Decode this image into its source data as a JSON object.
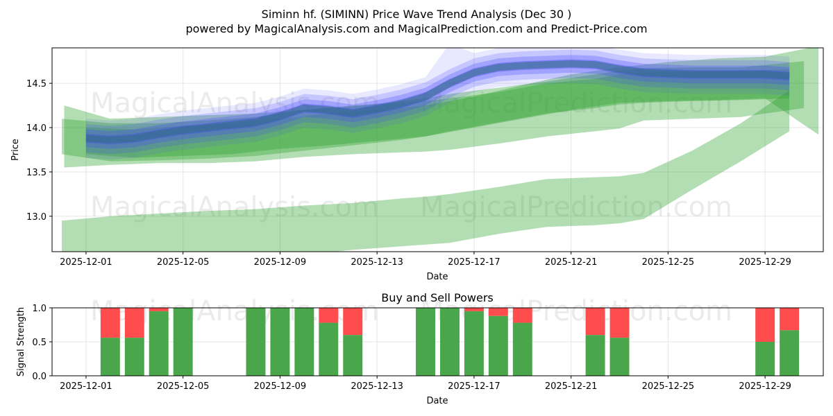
{
  "title": "Siminn hf. (SIMINN) Price Wave Trend Analysis (Dec 30 )",
  "subtitle": "powered by MagicalAnalysis.com and MagicalPrediction.com and Predict-Price.com",
  "watermarks": [
    "MagicalAnalysis.com",
    "MagicalPrediction.com"
  ],
  "colors": {
    "blue": "#4444ff",
    "green": "#2ca02c",
    "buy": "#4aa64a",
    "sell": "#ff4d4d",
    "teal": "#2f6f7a"
  },
  "chart_data": [
    {
      "type": "area",
      "name": "price-wave",
      "xlabel": "Date",
      "ylabel": "Price",
      "xlim": [
        -1.4,
        30.4
      ],
      "ylim": [
        12.6,
        14.9
      ],
      "x_origin_date": "2025-12-01",
      "x_ticks": [
        {
          "x": 0,
          "label": "2025-12-01"
        },
        {
          "x": 4,
          "label": "2025-12-05"
        },
        {
          "x": 8,
          "label": "2025-12-09"
        },
        {
          "x": 12,
          "label": "2025-12-13"
        },
        {
          "x": 16,
          "label": "2025-12-17"
        },
        {
          "x": 20,
          "label": "2025-12-21"
        },
        {
          "x": 24,
          "label": "2025-12-25"
        },
        {
          "x": 28,
          "label": "2025-12-29"
        }
      ],
      "y_ticks": [
        13.0,
        13.5,
        14.0,
        14.5
      ],
      "green_bands": [
        {
          "x": [
            -1,
            1,
            3,
            5,
            7,
            9,
            11,
            13,
            14,
            15,
            17,
            19,
            21,
            22,
            23,
            25,
            27,
            29
          ],
          "upper": [
            14.1,
            14.05,
            14.05,
            14.08,
            14.12,
            14.2,
            14.25,
            14.28,
            14.3,
            14.33,
            14.4,
            14.5,
            14.55,
            14.6,
            14.62,
            14.63,
            14.64,
            14.66
          ],
          "lower": [
            13.7,
            13.62,
            13.63,
            13.65,
            13.68,
            13.74,
            13.8,
            13.86,
            13.9,
            13.96,
            14.06,
            14.16,
            14.22,
            14.26,
            14.28,
            14.3,
            14.31,
            14.33
          ]
        },
        {
          "x": [
            -0.9,
            1,
            3,
            5,
            7,
            9,
            11,
            13,
            14,
            15,
            17,
            19,
            21,
            22,
            23,
            25,
            27,
            29.6
          ],
          "upper": [
            14.25,
            14.1,
            14.12,
            14.14,
            14.16,
            14.2,
            14.24,
            14.3,
            14.33,
            14.38,
            14.45,
            14.52,
            14.6,
            14.64,
            14.67,
            14.68,
            14.68,
            14.75
          ],
          "lower": [
            13.55,
            13.58,
            13.6,
            13.6,
            13.62,
            13.67,
            13.7,
            13.72,
            13.73,
            13.75,
            13.82,
            13.9,
            13.96,
            13.99,
            14.08,
            14.1,
            14.12,
            14.22
          ]
        },
        {
          "x": [
            -1,
            1,
            3,
            5,
            7,
            9,
            11,
            13,
            14,
            15,
            17,
            19,
            21,
            22,
            23,
            25,
            27,
            29
          ],
          "upper": [
            12.95,
            13.0,
            13.03,
            13.06,
            13.08,
            13.12,
            13.15,
            13.2,
            13.22,
            13.25,
            13.33,
            13.42,
            13.44,
            13.45,
            13.49,
            13.74,
            14.05,
            14.42
          ],
          "lower": [
            12.5,
            12.52,
            12.5,
            12.5,
            12.52,
            12.57,
            12.62,
            12.66,
            12.68,
            12.7,
            12.8,
            12.88,
            12.9,
            12.92,
            12.97,
            13.3,
            13.62,
            13.96
          ]
        },
        {
          "x": [
            0,
            2,
            4,
            6,
            8,
            10,
            12,
            14,
            16,
            18,
            20,
            22,
            24,
            26,
            28,
            30.2
          ],
          "upper": [
            14.0,
            13.98,
            14.02,
            14.05,
            14.1,
            14.16,
            14.2,
            14.25,
            14.35,
            14.48,
            14.6,
            14.68,
            14.74,
            14.78,
            14.8,
            14.92
          ],
          "lower": [
            13.7,
            13.66,
            13.68,
            13.7,
            13.76,
            13.8,
            13.85,
            13.9,
            14.0,
            14.1,
            14.2,
            14.28,
            14.3,
            14.31,
            14.33,
            13.92
          ]
        }
      ],
      "blue_center": {
        "x": [
          0,
          1,
          2,
          3,
          4,
          5,
          6,
          7,
          8,
          9,
          10,
          11,
          12,
          13,
          14,
          15,
          16,
          17,
          18,
          19,
          20,
          21,
          22,
          23,
          24,
          25,
          26,
          27,
          28,
          29
        ],
        "y": [
          13.88,
          13.86,
          13.88,
          13.93,
          13.97,
          14.0,
          14.03,
          14.06,
          14.13,
          14.22,
          14.2,
          14.16,
          14.21,
          14.27,
          14.35,
          14.5,
          14.62,
          14.68,
          14.7,
          14.71,
          14.72,
          14.71,
          14.66,
          14.62,
          14.61,
          14.6,
          14.6,
          14.6,
          14.6,
          14.58
        ]
      },
      "blue_halfwidths": [
        0.22,
        0.16,
        0.1,
        0.05
      ],
      "blue_peak": {
        "x": 15,
        "y": 14.95
      }
    },
    {
      "type": "bar",
      "name": "buy-sell-powers",
      "title": "Buy and Sell Powers",
      "xlabel": "Date",
      "ylabel": "Signal Strength",
      "xlim": [
        -1.4,
        30.4
      ],
      "ylim": [
        0,
        1.0
      ],
      "y_ticks": [
        0.0,
        0.5,
        1.0
      ],
      "y_tick_labels": [
        "0.0",
        "0.5",
        "1.0"
      ],
      "x_ticks": [
        {
          "x": 0,
          "label": "2025-12-01"
        },
        {
          "x": 4,
          "label": "2025-12-05"
        },
        {
          "x": 8,
          "label": "2025-12-09"
        },
        {
          "x": 12,
          "label": "2025-12-13"
        },
        {
          "x": 16,
          "label": "2025-12-17"
        },
        {
          "x": 20,
          "label": "2025-12-21"
        },
        {
          "x": 24,
          "label": "2025-12-25"
        },
        {
          "x": 28,
          "label": "2025-12-29"
        }
      ],
      "bars": [
        {
          "x": 1,
          "buy": 0.56
        },
        {
          "x": 2,
          "buy": 0.56
        },
        {
          "x": 3,
          "buy": 0.95
        },
        {
          "x": 4,
          "buy": 1.0
        },
        {
          "x": 7,
          "buy": 1.0
        },
        {
          "x": 8,
          "buy": 1.0
        },
        {
          "x": 9,
          "buy": 1.0
        },
        {
          "x": 10,
          "buy": 0.78
        },
        {
          "x": 11,
          "buy": 0.6
        },
        {
          "x": 14,
          "buy": 1.0
        },
        {
          "x": 15,
          "buy": 1.0
        },
        {
          "x": 16,
          "buy": 0.95
        },
        {
          "x": 17,
          "buy": 0.88
        },
        {
          "x": 18,
          "buy": 0.78
        },
        {
          "x": 21,
          "buy": 0.6
        },
        {
          "x": 22,
          "buy": 0.56
        },
        {
          "x": 28,
          "buy": 0.5
        },
        {
          "x": 29,
          "buy": 0.67
        }
      ]
    }
  ]
}
